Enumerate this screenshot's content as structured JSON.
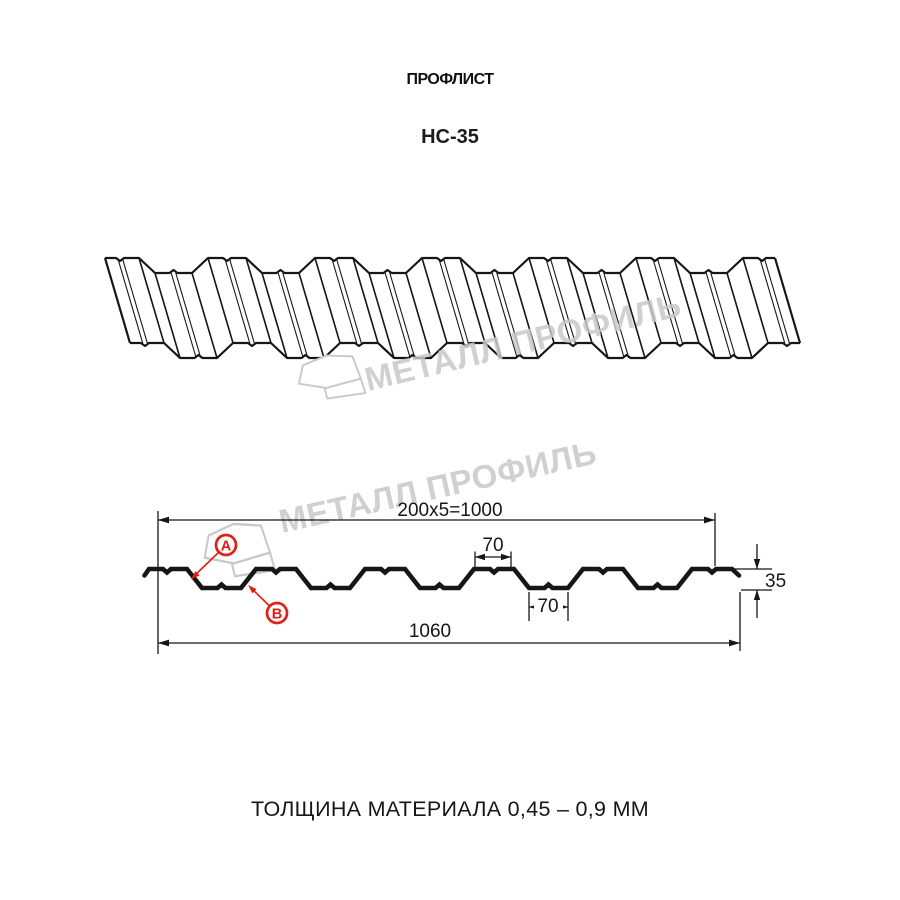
{
  "header": {
    "title": "ПРОФЛИСТ",
    "subtitle": "НС-35"
  },
  "watermark": {
    "brand": "МЕТАЛЛ ПРОФИЛЬ"
  },
  "cross_section": {
    "dim_coverage_width": "200x5=1000",
    "dim_overall_width": "1060",
    "dim_rib_top_width": "70",
    "dim_rib_bottom_width": "70",
    "dim_height": "35",
    "marker_a": "A",
    "marker_b": "B"
  },
  "footer": {
    "material_thickness": "ТОЛЩИНА МАТЕРИАЛА 0,45 – 0,9 ММ"
  },
  "colors": {
    "line": "#161616",
    "dimension": "#161616",
    "marker_red": "#e01f15",
    "watermark_gray": "#c8c8c8"
  }
}
